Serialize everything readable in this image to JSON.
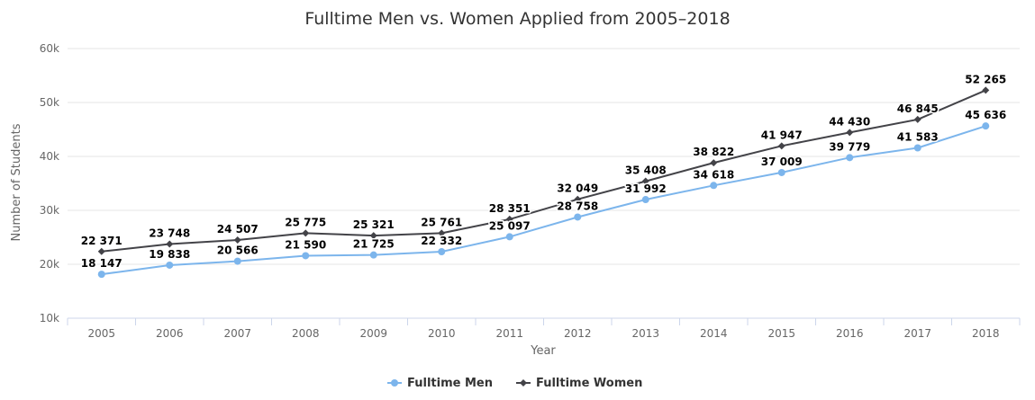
{
  "chart_data": {
    "type": "line",
    "title": "Fulltime Men vs. Women Applied from 2005–2018",
    "xlabel": "Year",
    "ylabel": "Number of Students",
    "categories": [
      "2005",
      "2006",
      "2007",
      "2008",
      "2009",
      "2010",
      "2011",
      "2012",
      "2013",
      "2014",
      "2015",
      "2016",
      "2017",
      "2018"
    ],
    "ylim": [
      10000,
      60000
    ],
    "yticks": [
      10000,
      20000,
      30000,
      40000,
      50000,
      60000
    ],
    "ytick_labels": [
      "10k",
      "20k",
      "30k",
      "40k",
      "50k",
      "60k"
    ],
    "grid": true,
    "legend_position": "bottom",
    "series": [
      {
        "name": "Fulltime Men",
        "color": "#7cb5ec",
        "marker": "circle",
        "values": [
          18147,
          19838,
          20566,
          21590,
          21725,
          22332,
          25097,
          28758,
          31992,
          34618,
          37009,
          39779,
          41583,
          45636
        ],
        "labels": [
          "18 147",
          "19 838",
          "20 566",
          "21 590",
          "21 725",
          "22 332",
          "25 097",
          "28 758",
          "31 992",
          "34 618",
          "37 009",
          "39 779",
          "41 583",
          "45 636"
        ]
      },
      {
        "name": "Fulltime Women",
        "color": "#434348",
        "marker": "diamond",
        "values": [
          22371,
          23748,
          24507,
          25775,
          25321,
          25761,
          28351,
          32049,
          35408,
          38822,
          41947,
          44430,
          46845,
          52265
        ],
        "labels": [
          "22 371",
          "23 748",
          "24 507",
          "25 775",
          "25 321",
          "25 761",
          "28 351",
          "32 049",
          "35 408",
          "38 822",
          "41 947",
          "44 430",
          "46 845",
          "52 265"
        ]
      }
    ]
  }
}
